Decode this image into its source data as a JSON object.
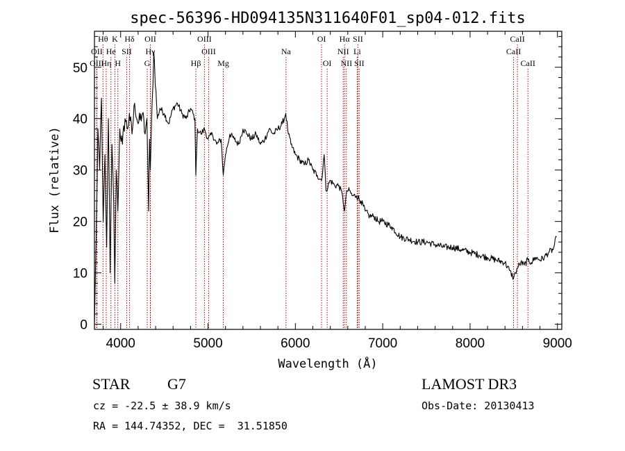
{
  "chart_data": {
    "type": "line",
    "title": "spec-56396-HD094135N311640F01_sp04-012.fits",
    "xlabel": "Wavelength (Å)",
    "ylabel": "Flux (relative)",
    "xlim": [
      3700,
      9050
    ],
    "ylim": [
      -1,
      57
    ],
    "x_ticks": [
      4000,
      5000,
      6000,
      7000,
      8000,
      9000
    ],
    "y_ticks": [
      0,
      10,
      20,
      30,
      40,
      50
    ],
    "series": [
      {
        "name": "flux",
        "x": [
          3700,
          3720,
          3740,
          3760,
          3780,
          3800,
          3820,
          3840,
          3860,
          3880,
          3900,
          3920,
          3933,
          3950,
          3968,
          3990,
          4020,
          4050,
          4080,
          4100,
          4130,
          4160,
          4200,
          4250,
          4280,
          4300,
          4320,
          4330,
          4340,
          4360,
          4380,
          4420,
          4450,
          4500,
          4550,
          4600,
          4650,
          4700,
          4750,
          4800,
          4850,
          4861,
          4880,
          4920,
          4960,
          5000,
          5050,
          5100,
          5150,
          5175,
          5200,
          5250,
          5300,
          5350,
          5400,
          5450,
          5500,
          5550,
          5600,
          5650,
          5700,
          5750,
          5800,
          5850,
          5890,
          5920,
          5950,
          6000,
          6050,
          6100,
          6150,
          6200,
          6250,
          6300,
          6330,
          6350,
          6400,
          6450,
          6500,
          6540,
          6563,
          6590,
          6620,
          6650,
          6700,
          6750,
          6800,
          6850,
          6900,
          6950,
          7000,
          7100,
          7200,
          7300,
          7400,
          7500,
          7600,
          7700,
          7800,
          7900,
          8000,
          8100,
          8200,
          8300,
          8400,
          8450,
          8498,
          8520,
          8542,
          8580,
          8620,
          8662,
          8700,
          8750,
          8800,
          8850,
          8900,
          8950,
          8990
        ],
        "values": [
          0,
          17,
          38,
          30,
          44,
          20,
          33,
          15,
          40,
          10,
          35,
          24,
          8,
          30,
          22,
          38,
          35,
          40,
          38,
          41,
          37,
          43,
          39,
          41,
          37,
          40,
          22,
          36,
          30,
          43,
          53,
          40,
          42,
          41,
          39,
          42,
          43,
          41,
          40,
          42,
          40,
          29,
          38,
          37,
          38,
          36,
          37,
          35,
          36,
          29,
          33,
          37,
          36,
          35,
          38,
          37,
          36,
          37,
          35,
          36,
          38,
          37,
          38,
          39,
          41,
          37,
          35,
          33,
          32,
          31,
          32,
          30,
          29,
          28,
          33,
          26,
          28,
          27,
          27,
          25,
          22,
          26,
          26,
          25,
          25,
          24,
          22,
          21,
          21,
          20,
          20,
          19,
          17,
          16.5,
          16,
          16,
          15.5,
          15,
          15,
          14.5,
          14,
          13.5,
          13,
          12.5,
          12,
          10.5,
          9,
          10,
          11,
          12,
          11.5,
          12.5,
          12,
          13,
          12.5,
          13,
          14,
          14.5,
          17
        ]
      }
    ],
    "lines": [
      {
        "label": "Hθ",
        "wl": 3798,
        "row": 0
      },
      {
        "label": "OII",
        "wl": 3727,
        "row": 1
      },
      {
        "label": "OIII",
        "wl": 3727,
        "row": 2
      },
      {
        "label": "He",
        "wl": 3889,
        "row": 1
      },
      {
        "label": "Hη",
        "wl": 3835,
        "row": 2
      },
      {
        "label": "K",
        "wl": 3934,
        "row": 0
      },
      {
        "label": "SII",
        "wl": 4069,
        "row": 1
      },
      {
        "label": "H",
        "wl": 3968,
        "row": 2
      },
      {
        "label": "Hδ",
        "wl": 4102,
        "row": 0
      },
      {
        "label": "OII",
        "wl": 4340,
        "row": 0
      },
      {
        "label": "Hγ",
        "wl": 4340,
        "row": 1
      },
      {
        "label": "G",
        "wl": 4304,
        "row": 2
      },
      {
        "label": "Hβ",
        "wl": 4861,
        "row": 2
      },
      {
        "label": "OIII",
        "wl": 4959,
        "row": 0
      },
      {
        "label": "OIII",
        "wl": 5007,
        "row": 1
      },
      {
        "label": "Mg",
        "wl": 5175,
        "row": 2
      },
      {
        "label": "Na",
        "wl": 5893,
        "row": 1
      },
      {
        "label": "OI",
        "wl": 6300,
        "row": 0
      },
      {
        "label": "OI",
        "wl": 6364,
        "row": 2
      },
      {
        "label": "Hα",
        "wl": 6563,
        "row": 0
      },
      {
        "label": "SII",
        "wl": 6716,
        "row": 0
      },
      {
        "label": "NII",
        "wl": 6548,
        "row": 1
      },
      {
        "label": "Li",
        "wl": 6708,
        "row": 1
      },
      {
        "label": "NII",
        "wl": 6584,
        "row": 2
      },
      {
        "label": "SII",
        "wl": 6731,
        "row": 2
      },
      {
        "label": "CaII",
        "wl": 8542,
        "row": 0
      },
      {
        "label": "CaII",
        "wl": 8498,
        "row": 1
      },
      {
        "label": "CaII",
        "wl": 8662,
        "row": 2
      }
    ]
  },
  "info": {
    "class_label": "STAR",
    "subclass": "G7",
    "survey": "LAMOST DR3",
    "redshift_line": "cz = -22.5 ± 38.9 km/s",
    "obs_date": "Obs-Date: 20130413",
    "coords": "RA = 144.74352, DEC =  31.51850"
  },
  "colors": {
    "line_marker": "#b00000",
    "spectrum": "#000000"
  }
}
